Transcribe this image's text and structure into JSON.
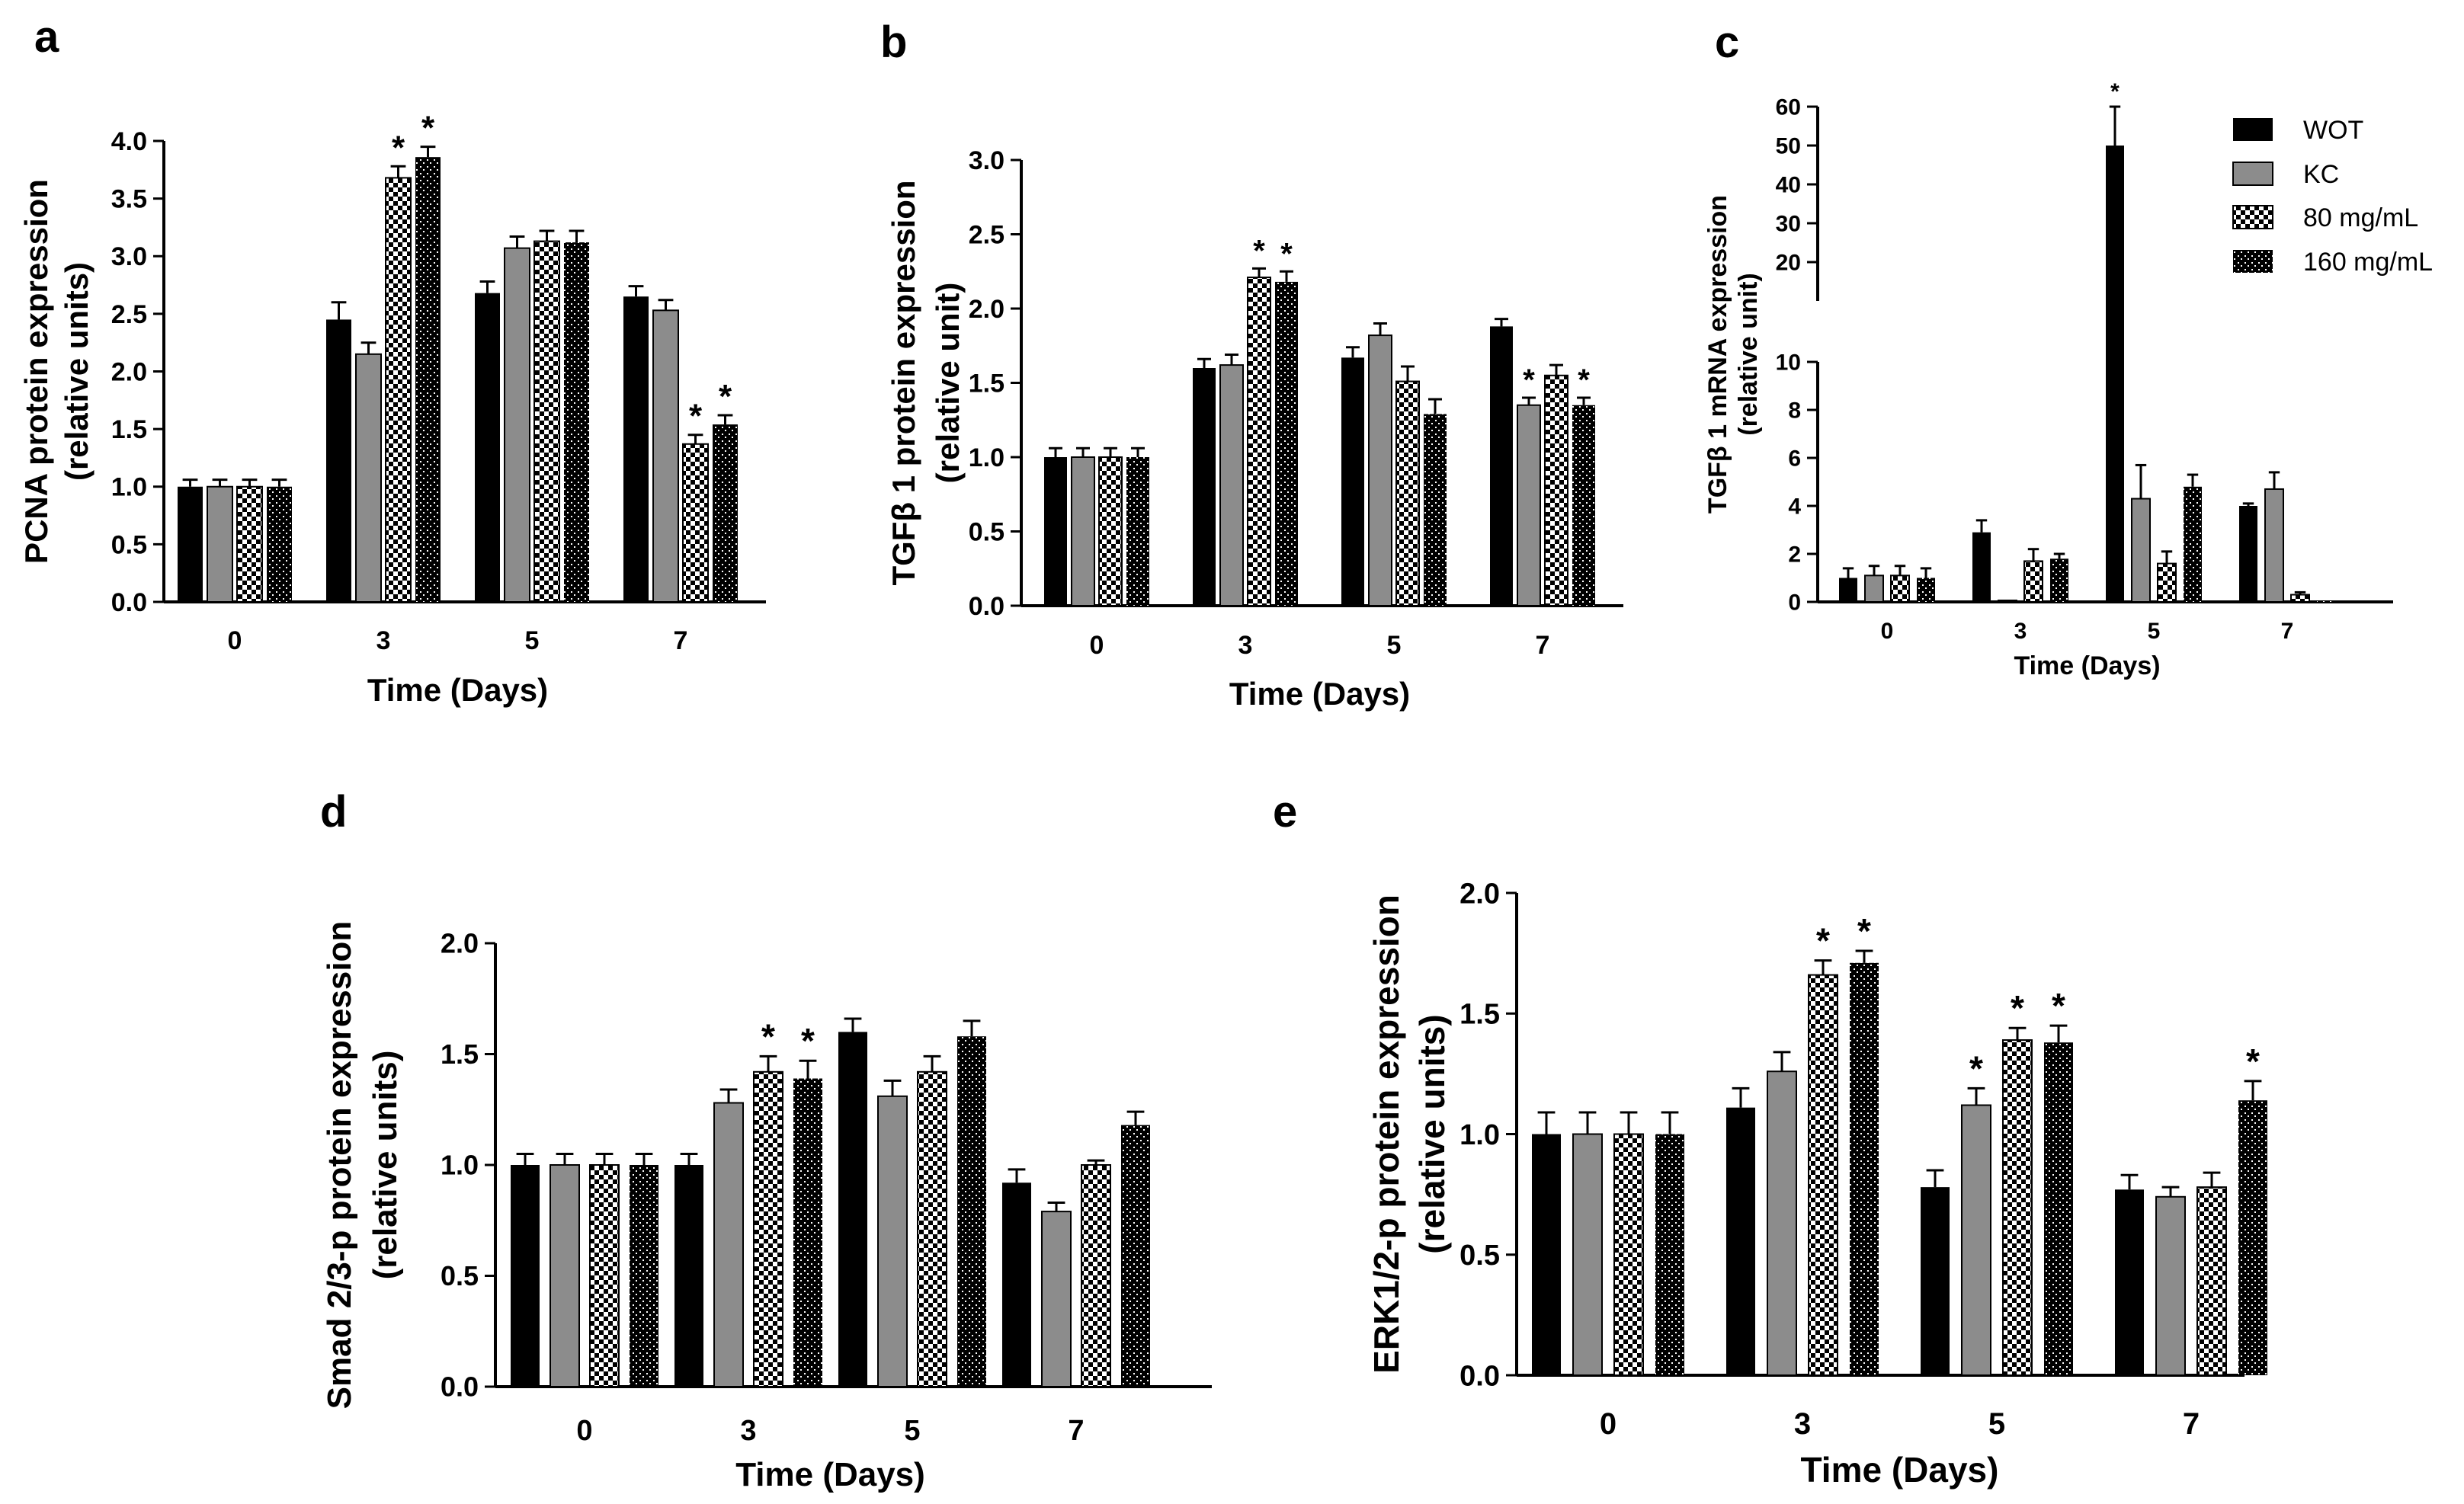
{
  "figure": {
    "panel_letters": [
      "a",
      "b",
      "c",
      "d",
      "e"
    ],
    "legend": {
      "labels": [
        "WOT",
        "KC",
        "80 mg/mL",
        "160 mg/mL"
      ],
      "patterns": [
        "solid-black",
        "solid-gray",
        "checker",
        "dots"
      ]
    },
    "colors": {
      "black": "#000000",
      "gray": "#8c8c8c",
      "white": "#ffffff"
    }
  },
  "chart_data": [
    {
      "panel": "a",
      "type": "bar",
      "categories": [
        "0",
        "3",
        "5",
        "7"
      ],
      "xlabel": "Time (Days)",
      "ylabel": [
        "PCNA protein expression",
        "(relative units)"
      ],
      "ylim": [
        0,
        4.0
      ],
      "yticks": [
        "0.0",
        "0.5",
        "1.0",
        "1.5",
        "2.0",
        "2.5",
        "3.0",
        "3.5",
        "4.0"
      ],
      "series": [
        {
          "name": "WOT",
          "values": [
            1.0,
            2.45,
            2.68,
            2.65
          ],
          "errors": [
            0.06,
            0.15,
            0.1,
            0.09
          ],
          "stars": [
            false,
            false,
            false,
            false
          ]
        },
        {
          "name": "KC",
          "values": [
            1.0,
            2.15,
            3.07,
            2.53
          ],
          "errors": [
            0.06,
            0.1,
            0.1,
            0.09
          ],
          "stars": [
            false,
            false,
            false,
            false
          ]
        },
        {
          "name": "80 mg/mL",
          "values": [
            1.0,
            3.68,
            3.13,
            1.37
          ],
          "errors": [
            0.06,
            0.1,
            0.09,
            0.08
          ],
          "stars": [
            false,
            true,
            false,
            true
          ]
        },
        {
          "name": "160 mg/mL",
          "values": [
            1.0,
            3.86,
            3.12,
            1.54
          ],
          "errors": [
            0.06,
            0.09,
            0.1,
            0.08
          ],
          "stars": [
            false,
            true,
            false,
            true
          ]
        }
      ]
    },
    {
      "panel": "b",
      "type": "bar",
      "categories": [
        "0",
        "3",
        "5",
        "7"
      ],
      "xlabel": "Time (Days)",
      "ylabel": [
        "TGFβ 1 protein expression",
        "(relative unit)"
      ],
      "ylim": [
        0,
        3.0
      ],
      "yticks": [
        "0.0",
        "0.5",
        "1.0",
        "1.5",
        "2.0",
        "2.5",
        "3.0"
      ],
      "series": [
        {
          "name": "WOT",
          "values": [
            1.0,
            1.6,
            1.67,
            1.88
          ],
          "errors": [
            0.06,
            0.06,
            0.07,
            0.05
          ],
          "stars": [
            false,
            false,
            false,
            false
          ]
        },
        {
          "name": "KC",
          "values": [
            1.0,
            1.62,
            1.82,
            1.35
          ],
          "errors": [
            0.06,
            0.07,
            0.08,
            0.05
          ],
          "stars": [
            false,
            false,
            false,
            true
          ]
        },
        {
          "name": "80 mg/mL",
          "values": [
            1.0,
            2.21,
            1.51,
            1.55
          ],
          "errors": [
            0.06,
            0.06,
            0.1,
            0.07
          ],
          "stars": [
            false,
            true,
            false,
            false
          ]
        },
        {
          "name": "160 mg/mL",
          "values": [
            1.0,
            2.18,
            1.29,
            1.35
          ],
          "errors": [
            0.06,
            0.07,
            0.1,
            0.05
          ],
          "stars": [
            false,
            true,
            false,
            true
          ]
        }
      ]
    },
    {
      "panel": "c",
      "type": "bar",
      "categories": [
        "0",
        "3",
        "5",
        "7"
      ],
      "xlabel": "Time (Days)",
      "ylabel": [
        "TGFβ 1 mRNA expression",
        "(relative unit)"
      ],
      "axis_break": {
        "lower": [
          0,
          10
        ],
        "upper": [
          10,
          60
        ]
      },
      "yticks_lower": [
        "0",
        "2",
        "4",
        "6",
        "8",
        "10"
      ],
      "yticks_upper": [
        "20",
        "30",
        "40",
        "50",
        "60"
      ],
      "series": [
        {
          "name": "WOT",
          "values": [
            1.0,
            2.9,
            50.0,
            4.0
          ],
          "errors": [
            0.4,
            0.5,
            10.0,
            0.1
          ],
          "stars": [
            false,
            false,
            true,
            false
          ]
        },
        {
          "name": "KC",
          "values": [
            1.1,
            0.05,
            4.3,
            4.7
          ],
          "errors": [
            0.4,
            0.0,
            1.4,
            0.7
          ],
          "stars": [
            false,
            false,
            false,
            false
          ]
        },
        {
          "name": "80 mg/mL",
          "values": [
            1.1,
            1.7,
            1.6,
            0.3
          ],
          "errors": [
            0.4,
            0.5,
            0.5,
            0.1
          ],
          "stars": [
            false,
            false,
            false,
            false
          ]
        },
        {
          "name": "160 mg/mL",
          "values": [
            1.0,
            1.8,
            4.8,
            0.05
          ],
          "errors": [
            0.4,
            0.2,
            0.5,
            0.0
          ],
          "stars": [
            false,
            false,
            false,
            false
          ]
        }
      ]
    },
    {
      "panel": "d",
      "type": "bar",
      "categories": [
        "0",
        "3",
        "5",
        "7"
      ],
      "xlabel": "Time (Days)",
      "ylabel": [
        "Smad 2/3-p protein expression",
        "(relative units)"
      ],
      "ylim": [
        0,
        2.0
      ],
      "yticks": [
        "0.0",
        "0.5",
        "1.0",
        "1.5",
        "2.0"
      ],
      "series": [
        {
          "name": "WOT",
          "values": [
            1.0,
            1.0,
            1.6,
            0.92
          ],
          "errors": [
            0.05,
            0.05,
            0.06,
            0.06
          ],
          "stars": [
            false,
            false,
            false,
            false
          ]
        },
        {
          "name": "KC",
          "values": [
            1.0,
            1.28,
            1.31,
            0.79
          ],
          "errors": [
            0.05,
            0.06,
            0.07,
            0.04
          ],
          "stars": [
            false,
            false,
            false,
            false
          ]
        },
        {
          "name": "80 mg/mL",
          "values": [
            1.0,
            1.42,
            1.42,
            1.0
          ],
          "errors": [
            0.05,
            0.07,
            0.07,
            0.02
          ],
          "stars": [
            false,
            true,
            false,
            false
          ]
        },
        {
          "name": "160 mg/mL",
          "values": [
            1.0,
            1.39,
            1.58,
            1.18
          ],
          "errors": [
            0.05,
            0.08,
            0.07,
            0.06
          ],
          "stars": [
            false,
            true,
            false,
            false
          ]
        }
      ]
    },
    {
      "panel": "e",
      "type": "bar",
      "categories": [
        "0",
        "3",
        "5",
        "7"
      ],
      "xlabel": "Time (Days)",
      "ylabel": [
        "ERK1/2-p protein expression",
        "(relative units)"
      ],
      "ylim": [
        0,
        2.0
      ],
      "yticks": [
        "0.0",
        "0.5",
        "1.0",
        "1.5",
        "2.0"
      ],
      "series": [
        {
          "name": "WOT",
          "values": [
            1.0,
            1.11,
            0.78,
            0.77
          ],
          "errors": [
            0.09,
            0.08,
            0.07,
            0.06
          ],
          "stars": [
            false,
            false,
            false,
            false
          ]
        },
        {
          "name": "KC",
          "values": [
            1.0,
            1.26,
            1.12,
            0.74
          ],
          "errors": [
            0.09,
            0.08,
            0.07,
            0.04
          ],
          "stars": [
            false,
            false,
            true,
            false
          ]
        },
        {
          "name": "80 mg/mL",
          "values": [
            1.0,
            1.66,
            1.39,
            0.78
          ],
          "errors": [
            0.09,
            0.06,
            0.05,
            0.06
          ],
          "stars": [
            false,
            true,
            true,
            false
          ]
        },
        {
          "name": "160 mg/mL",
          "values": [
            1.0,
            1.71,
            1.38,
            1.14
          ],
          "errors": [
            0.09,
            0.05,
            0.07,
            0.08
          ],
          "stars": [
            false,
            true,
            true,
            true
          ]
        }
      ]
    }
  ]
}
